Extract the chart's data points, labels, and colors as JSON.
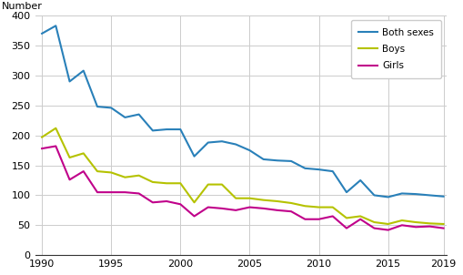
{
  "years": [
    1990,
    1991,
    1992,
    1993,
    1994,
    1995,
    1996,
    1997,
    1998,
    1999,
    2000,
    2001,
    2002,
    2003,
    2004,
    2005,
    2006,
    2007,
    2008,
    2009,
    2010,
    2011,
    2012,
    2013,
    2014,
    2015,
    2016,
    2017,
    2018,
    2019
  ],
  "both_sexes": [
    370,
    383,
    290,
    308,
    248,
    246,
    230,
    235,
    208,
    210,
    210,
    165,
    188,
    190,
    185,
    175,
    160,
    158,
    157,
    145,
    143,
    140,
    105,
    125,
    100,
    97,
    103,
    102,
    100,
    98
  ],
  "boys": [
    197,
    212,
    163,
    170,
    140,
    138,
    130,
    133,
    122,
    120,
    120,
    88,
    118,
    118,
    95,
    95,
    92,
    90,
    87,
    82,
    80,
    80,
    62,
    65,
    55,
    52,
    58,
    55,
    53,
    52
  ],
  "girls": [
    178,
    182,
    126,
    140,
    105,
    105,
    105,
    103,
    88,
    90,
    85,
    65,
    80,
    78,
    75,
    80,
    78,
    75,
    73,
    60,
    60,
    65,
    45,
    60,
    45,
    42,
    50,
    47,
    48,
    45
  ],
  "both_sexes_color": "#2980b9",
  "boys_color": "#b5c200",
  "girls_color": "#c0008a",
  "ylabel": "Number",
  "ylim": [
    0,
    400
  ],
  "yticks": [
    0,
    50,
    100,
    150,
    200,
    250,
    300,
    350,
    400
  ],
  "xlim": [
    1990,
    2019
  ],
  "xticks": [
    1990,
    1995,
    2000,
    2005,
    2010,
    2015,
    2019
  ],
  "legend_labels": [
    "Both sexes",
    "Boys",
    "Girls"
  ],
  "line_width": 1.5,
  "grid_color": "#cccccc",
  "background_color": "#ffffff"
}
